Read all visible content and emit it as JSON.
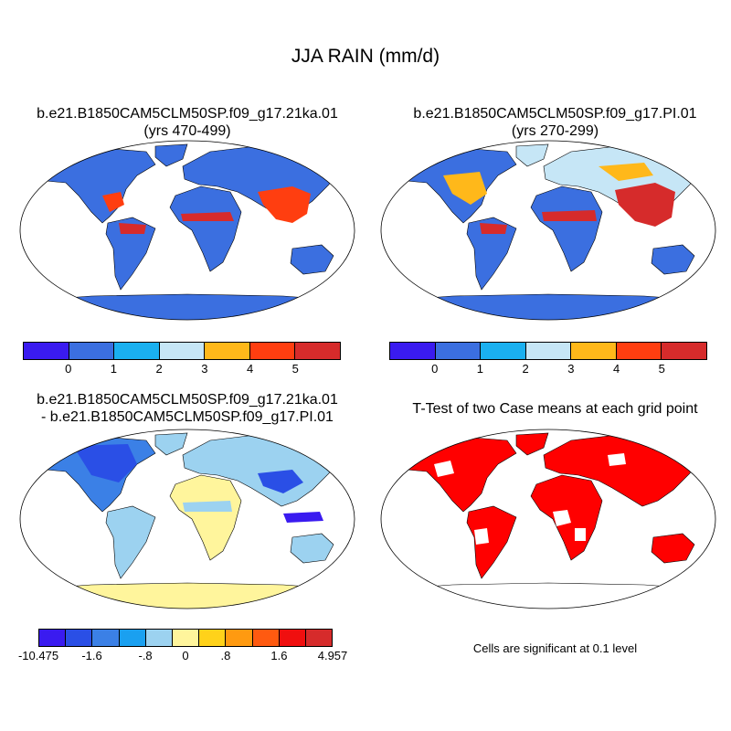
{
  "main_title": "JJA RAIN (mm/d)",
  "panels": {
    "case1": {
      "title_line1": "b.e21.B1850CAM5CLM50SP.f09_g17.21ka.01",
      "title_line2": "(yrs 470-499)"
    },
    "case2": {
      "title_line1": "b.e21.B1850CAM5CLM50SP.f09_g17.PI.01",
      "title_line2": "(yrs 270-299)"
    },
    "diff": {
      "title_line1": "b.e21.B1850CAM5CLM50SP.f09_g17.21ka.01",
      "title_line2": "- b.e21.B1850CAM5CLM50SP.f09_g17.PI.01"
    },
    "ttest": {
      "title_line1": "T-Test of two Case means at each grid point",
      "note": "Cells are significant at 0.1 level"
    }
  },
  "colorbar_main": {
    "colors": [
      "#3a1bf0",
      "#3b6fe0",
      "#1ab0f0",
      "#c6e6f6",
      "#ffb81a",
      "#ff3e10",
      "#d62b2b"
    ],
    "labels": [
      "0",
      "1",
      "2",
      "3",
      "4",
      "5"
    ]
  },
  "colorbar_diff": {
    "colors": [
      "#3a1bf0",
      "#2a4fe6",
      "#3b80e6",
      "#1aa0f0",
      "#9cd2f0",
      "#fff59c",
      "#ffd21a",
      "#ff9a10",
      "#ff5a10",
      "#f00f0f",
      "#d62b2b"
    ],
    "labels": [
      "-10.475",
      "-1.6",
      "-.8",
      "0",
      ".8",
      "1.6",
      "4.957"
    ]
  },
  "colors": {
    "ocean": "#ffffff",
    "coast": "#000000",
    "significant": "#ff0000"
  }
}
